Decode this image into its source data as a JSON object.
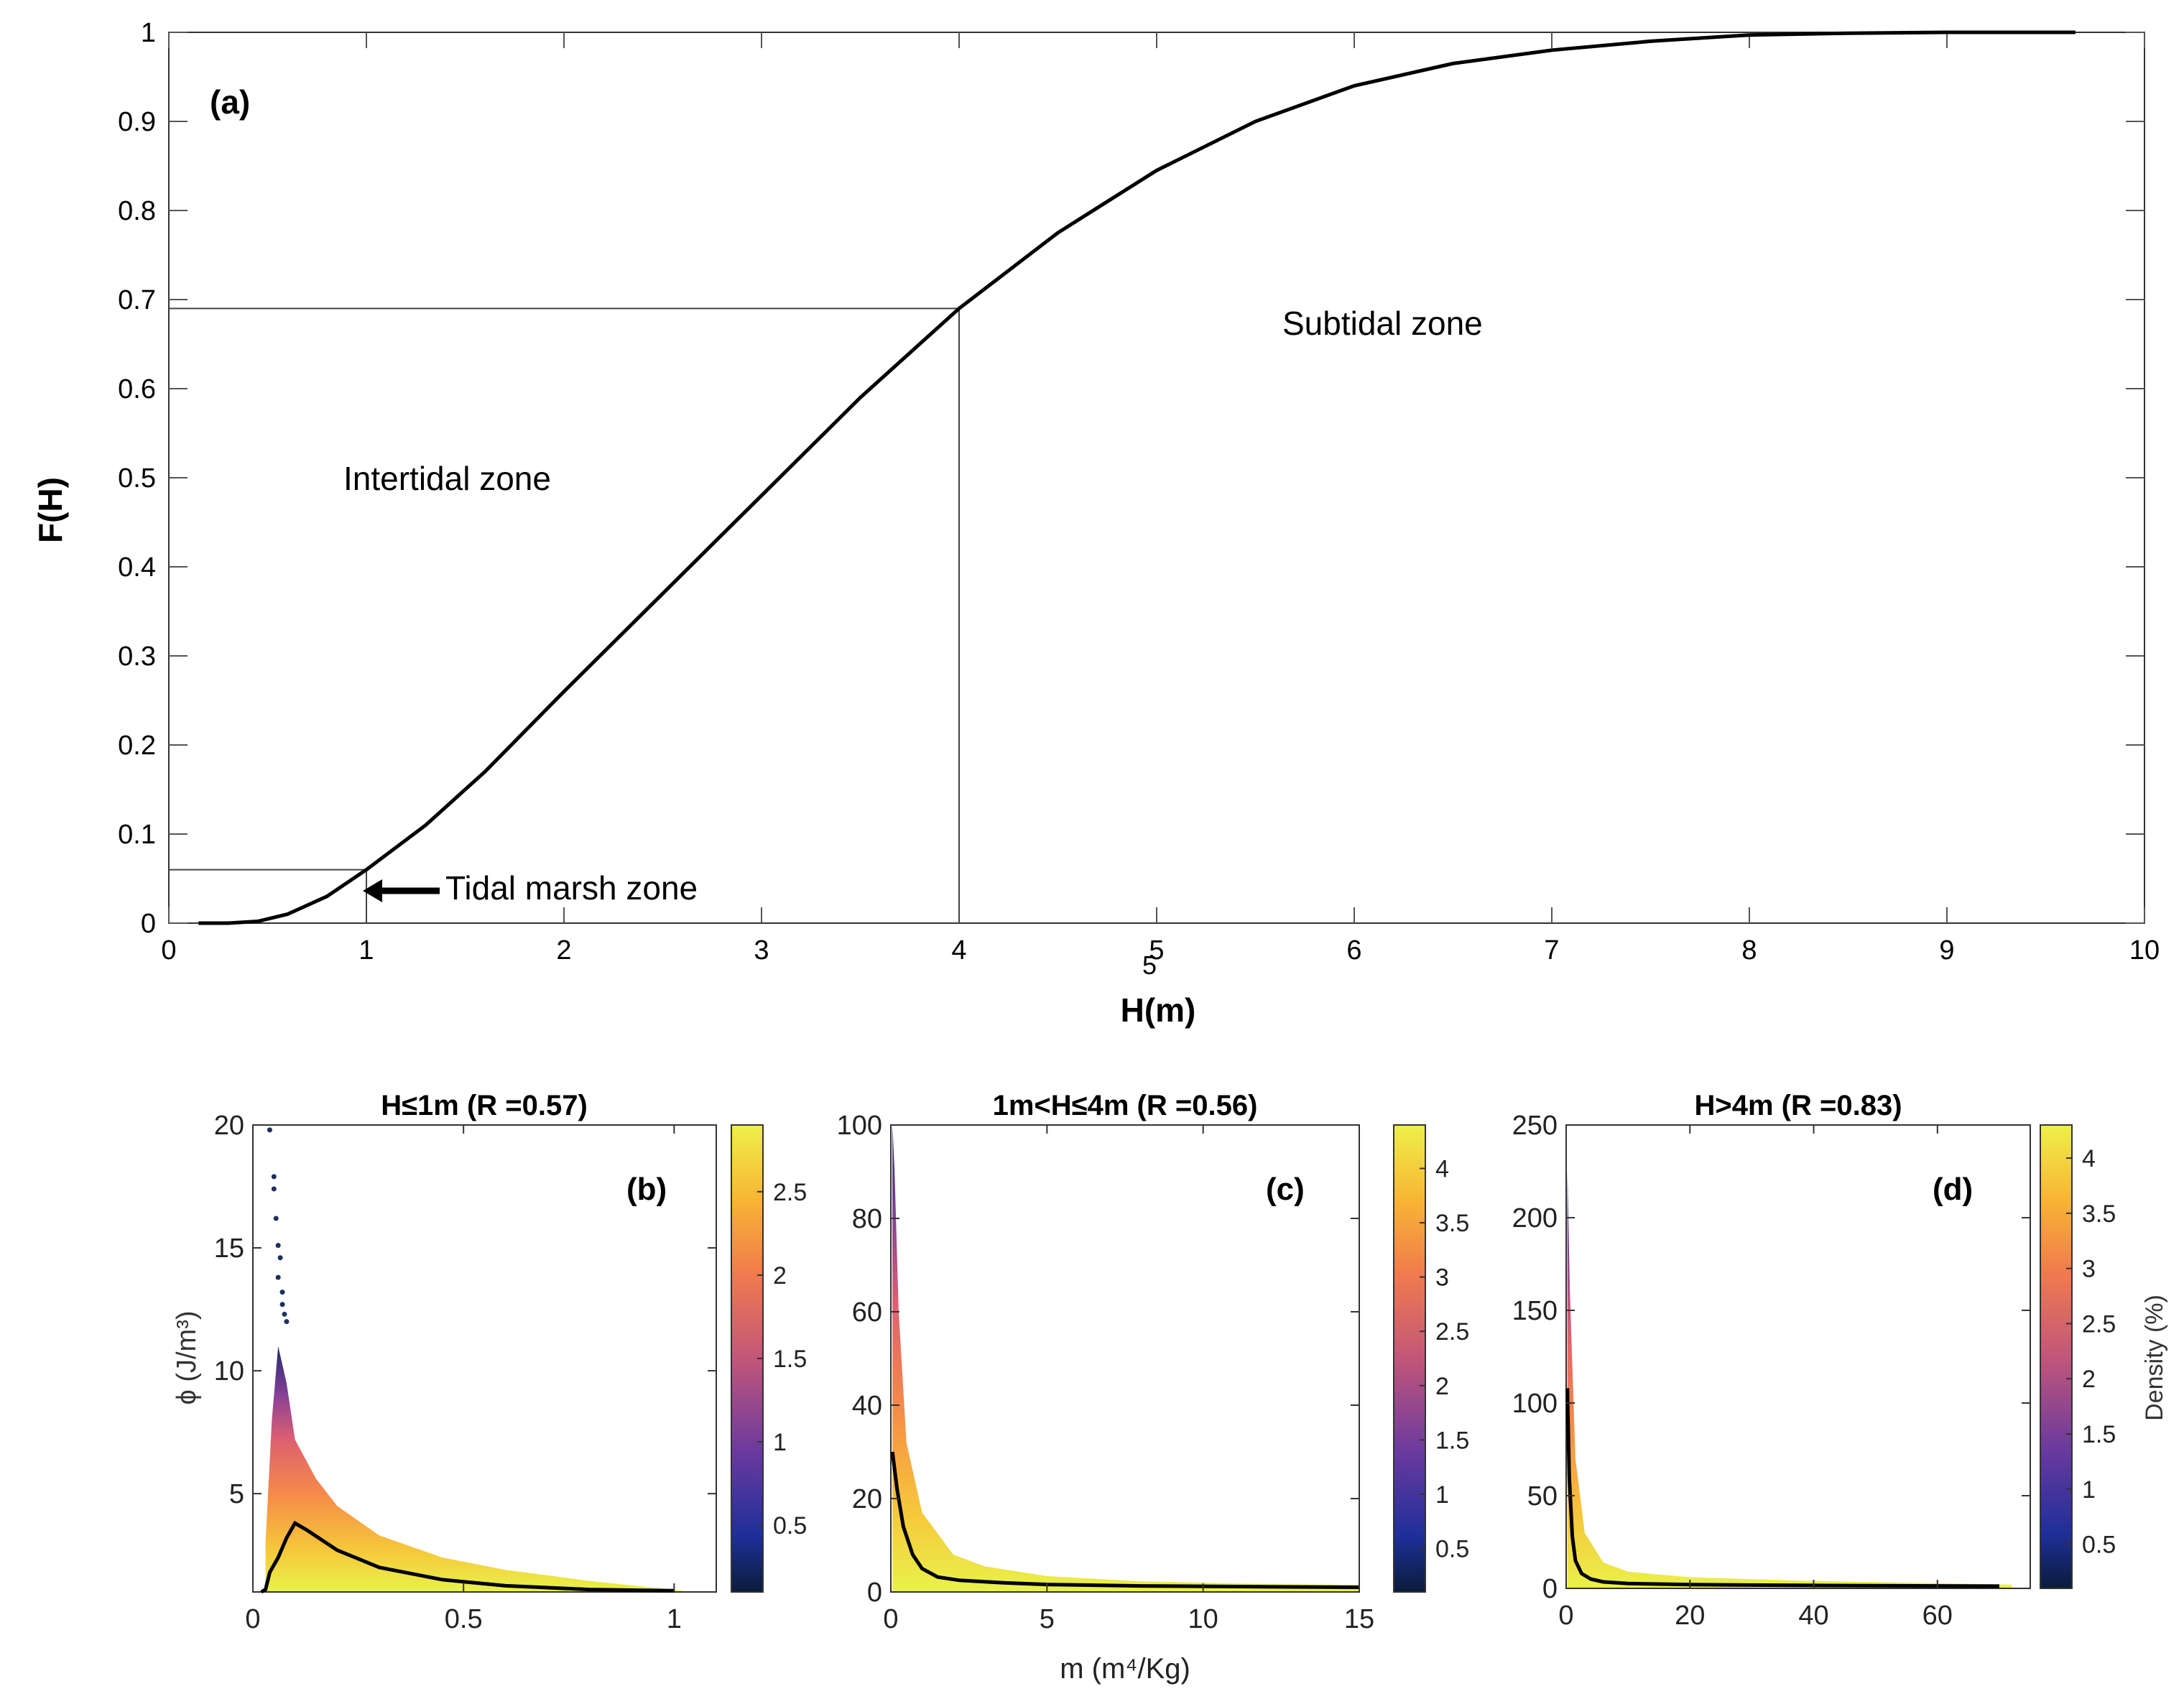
{
  "colors": {
    "axis": "#333333",
    "curve": "#000000",
    "grid": "#555555"
  },
  "chart_data": [
    {
      "id": "a",
      "type": "line",
      "panel_label": "(a)",
      "xlabel": "H(m)",
      "ylabel": "F(H)",
      "xlim": [
        0,
        10
      ],
      "ylim": [
        0,
        1
      ],
      "xticks": [
        0,
        1,
        2,
        3,
        4,
        5,
        6,
        7,
        8,
        9,
        10
      ],
      "yticks": [
        0,
        0.1,
        0.2,
        0.3,
        0.4,
        0.5,
        0.6,
        0.7,
        0.8,
        0.9,
        1
      ],
      "x": [
        0.15,
        0.3,
        0.45,
        0.6,
        0.8,
        1.0,
        1.3,
        1.6,
        2.0,
        2.5,
        3.0,
        3.5,
        4.0,
        4.5,
        5.0,
        5.5,
        6.0,
        6.5,
        7.0,
        7.5,
        8.0,
        8.5,
        9.0,
        9.65
      ],
      "y": [
        0.0,
        0.0,
        0.002,
        0.01,
        0.03,
        0.06,
        0.11,
        0.17,
        0.26,
        0.37,
        0.48,
        0.59,
        0.69,
        0.775,
        0.845,
        0.9,
        0.94,
        0.965,
        0.98,
        0.99,
        0.997,
        0.999,
        1.0,
        1.0
      ],
      "reference_lines": [
        {
          "h": 1,
          "f": 0.06
        },
        {
          "h": 4,
          "f": 0.69
        }
      ],
      "annotations": {
        "intertidal": "Intertidal zone",
        "subtidal": "Subtidal zone",
        "marsh": "Tidal marsh zone",
        "stray_label": "5"
      }
    },
    {
      "id": "b",
      "type": "scatter",
      "panel_label": "(b)",
      "title": "H≤1m (R =0.57)",
      "ylabel": "ϕ (J/m³)",
      "xlim": [
        0,
        1.1
      ],
      "ylim": [
        1,
        20
      ],
      "xticks": [
        0,
        0.5,
        1
      ],
      "xticklabels": [
        "0",
        "0.5",
        "1"
      ],
      "yticks": [
        5,
        10,
        15,
        20
      ],
      "colorbar_ticks": [
        0.5,
        1,
        1.5,
        2,
        2.5
      ],
      "colorbar_range": [
        0.1,
        2.9
      ],
      "curve_x": [
        0.02,
        0.03,
        0.04,
        0.06,
        0.08,
        0.1,
        0.13,
        0.2,
        0.3,
        0.45,
        0.6,
        0.8,
        1.0
      ],
      "curve_y": [
        1.0,
        1.1,
        1.8,
        2.4,
        3.2,
        3.8,
        3.5,
        2.7,
        2.0,
        1.5,
        1.25,
        1.1,
        1.05
      ],
      "envelope_x": [
        0.03,
        0.045,
        0.06,
        0.08,
        0.1,
        0.15,
        0.2,
        0.3,
        0.45,
        0.6,
        0.8,
        1.02
      ],
      "envelope_y": [
        3.0,
        8.0,
        11.0,
        9.5,
        7.2,
        5.6,
        4.5,
        3.3,
        2.4,
        1.9,
        1.45,
        1.05
      ],
      "outliers_x": [
        0.04,
        0.05,
        0.05,
        0.055,
        0.06,
        0.065,
        0.06,
        0.07,
        0.07,
        0.075,
        0.08
      ],
      "outliers_y": [
        19.8,
        17.9,
        17.4,
        16.2,
        15.1,
        14.6,
        13.8,
        13.2,
        12.7,
        12.3,
        12.0
      ]
    },
    {
      "id": "c",
      "type": "scatter",
      "panel_label": "(c)",
      "title": "1m<H≤4m (R =0.56)",
      "xlabel": "m (m⁴/Kg)",
      "xlim": [
        0,
        15
      ],
      "ylim": [
        0,
        100
      ],
      "xticks": [
        0,
        5,
        10,
        15
      ],
      "yticks": [
        0,
        20,
        40,
        60,
        80,
        100
      ],
      "colorbar_ticks": [
        0.5,
        1,
        1.5,
        2,
        2.5,
        3,
        3.5,
        4
      ],
      "colorbar_range": [
        0.1,
        4.4
      ],
      "curve_x": [
        0.05,
        0.2,
        0.4,
        0.7,
        1.0,
        1.5,
        2.2,
        3.5,
        5,
        8,
        12,
        15
      ],
      "curve_y": [
        30,
        22,
        14,
        8,
        5,
        3.2,
        2.5,
        2.0,
        1.6,
        1.3,
        1.1,
        1.0
      ],
      "envelope_x": [
        0.05,
        0.12,
        0.25,
        0.5,
        1.0,
        2.0,
        3.0,
        5.0,
        8.0,
        12.0,
        15.0
      ],
      "envelope_y": [
        100,
        90,
        60,
        32,
        17,
        8,
        5.5,
        3.4,
        2.3,
        1.7,
        1.5
      ],
      "outliers_x": [],
      "outliers_y": []
    },
    {
      "id": "d",
      "type": "scatter",
      "panel_label": "(d)",
      "title": "H>4m (R =0.83)",
      "colorbar_label": "Density (%)",
      "xlim": [
        0,
        75
      ],
      "ylim": [
        0,
        250
      ],
      "xticks": [
        0,
        20,
        40,
        60
      ],
      "yticks": [
        0,
        50,
        100,
        150,
        200,
        250
      ],
      "colorbar_ticks": [
        0.5,
        1,
        1.5,
        2,
        2.5,
        3,
        3.5,
        4
      ],
      "colorbar_range": [
        0.1,
        4.3
      ],
      "curve_x": [
        0.2,
        0.5,
        1.0,
        1.5,
        2.5,
        4.0,
        6.0,
        10.0,
        20.0,
        40.0,
        60.0,
        70.0
      ],
      "curve_y": [
        108,
        60,
        28,
        15,
        8,
        5,
        3.5,
        2.6,
        2.0,
        1.6,
        1.3,
        1.2
      ],
      "envelope_x": [
        0.2,
        0.6,
        1.5,
        3.0,
        6.0,
        10.0,
        20.0,
        40.0,
        60.0,
        72.0
      ],
      "envelope_y": [
        225,
        160,
        70,
        30,
        14,
        9,
        6,
        4,
        2.8,
        2.0
      ],
      "outliers_x": [],
      "outliers_y": []
    }
  ]
}
